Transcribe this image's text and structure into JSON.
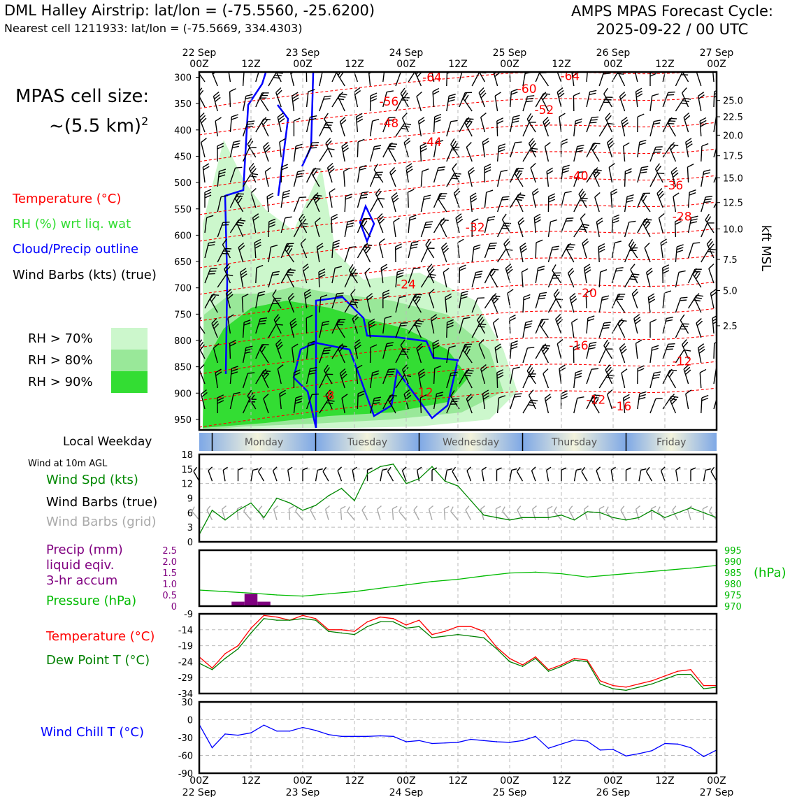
{
  "header": {
    "title_left": "DML Halley Airstrip: lat/lon = (-75.5560, -25.6200)",
    "subtitle_left": "Nearest cell 1211933: lat/lon = (-75.5669, 334.4303)",
    "title_right_line1": "AMPS MPAS Forecast Cycle:",
    "title_right_line2": "2025-09-22 / 00 UTC"
  },
  "cell_size": {
    "line1": "MPAS cell size:",
    "line2_prefix": "~(5.5 km)",
    "line2_sup": "2"
  },
  "legend": {
    "temperature": "Temperature (°C)",
    "rh": "RH (%) wrt liq. wat",
    "cloud": "Cloud/Precip outline",
    "wind": "Wind Barbs (kts) (true)",
    "rh70": "RH > 70%",
    "rh80": "RH > 80%",
    "rh90": "RH > 90%"
  },
  "colors": {
    "temp": "#ff0000",
    "rh_label": "#33dd33",
    "cloud": "#0000ff",
    "rh70": "#ccf7cc",
    "rh80": "#99e899",
    "rh90": "#33dd33",
    "wind_spd": "#008800",
    "barb_grid": "#aaaaaa",
    "precip": "#800080",
    "pressure": "#00bb00",
    "dewpoint": "#008000",
    "windchill": "#0000ff"
  },
  "time_axis": {
    "date_labels": [
      "22 Sep",
      "23 Sep",
      "24 Sep",
      "25 Sep",
      "26 Sep",
      "27 Sep"
    ],
    "hour_labels": [
      "00Z",
      "12Z",
      "00Z",
      "12Z",
      "00Z",
      "12Z",
      "00Z",
      "12Z",
      "00Z",
      "12Z",
      "00Z"
    ],
    "range_hours": [
      0,
      120
    ]
  },
  "weekday": {
    "label": "Local Weekday",
    "days": [
      "Monday",
      "Tuesday",
      "Wednesday",
      "Thursday",
      "Friday"
    ]
  },
  "panels": {
    "wind_title": "Wind at 10m AGL",
    "wind_spd": "Wind Spd (kts)",
    "wind_barbs_true": "Wind Barbs (true)",
    "wind_barbs_grid": "Wind Barbs (grid)",
    "precip_1": "Precip (mm)",
    "precip_2": "liquid eqiv.",
    "precip_3": "3-hr accum",
    "pressure": "Pressure (hPa)",
    "pressure_unit": "(hPa)",
    "temp": "Temperature (°C)",
    "dewpoint": "Dew Point T (°C)",
    "windchill": "Wind Chill T (°C)"
  },
  "chart_data": [
    {
      "type": "heatmap",
      "name": "profile",
      "ylabel_right": "kft MSL",
      "y_ticks_hpa": [
        300,
        350,
        400,
        450,
        500,
        550,
        600,
        650,
        700,
        750,
        800,
        850,
        900,
        950
      ],
      "ylim_hpa": [
        290,
        970
      ],
      "y_right_ticks_kft": [
        "25.0",
        "22.5",
        "20.0",
        "17.5",
        "15.0",
        "12.5",
        "10.0",
        "7.5",
        "5.0",
        "2.5"
      ],
      "y_right_tick_hpa": [
        344,
        375,
        410,
        449,
        491,
        538,
        588,
        646,
        705,
        772
      ],
      "temp_contour_labels": [
        {
          "t": 27,
          "p": 300,
          "v": "-64"
        },
        {
          "t": 43,
          "p": 297,
          "v": "-64"
        },
        {
          "t": 22,
          "p": 346,
          "v": "-56"
        },
        {
          "t": 38,
          "p": 322,
          "v": "-60"
        },
        {
          "t": 40,
          "p": 362,
          "v": "-52"
        },
        {
          "t": 22,
          "p": 387,
          "v": "-48"
        },
        {
          "t": 27,
          "p": 423,
          "v": "-44"
        },
        {
          "t": 44,
          "p": 487,
          "v": "-40"
        },
        {
          "t": 55,
          "p": 505,
          "v": "-36"
        },
        {
          "t": 56,
          "p": 564,
          "v": "-28"
        },
        {
          "t": 32,
          "p": 585,
          "v": "-32"
        },
        {
          "t": 24,
          "p": 693,
          "v": "-24"
        },
        {
          "t": 45,
          "p": 710,
          "v": "-20"
        },
        {
          "t": 44,
          "p": 809,
          "v": "-16"
        },
        {
          "t": 56,
          "p": 839,
          "v": "-12"
        },
        {
          "t": 26,
          "p": 898,
          "v": "-12"
        },
        {
          "t": 15,
          "p": 904,
          "v": "-8"
        },
        {
          "t": 46,
          "p": 912,
          "v": "-12"
        },
        {
          "t": 49,
          "p": 925,
          "v": "-16"
        }
      ]
    },
    {
      "type": "line",
      "name": "wind10m",
      "ylim": [
        0,
        18
      ],
      "y_ticks": [
        0,
        3,
        6,
        9,
        12,
        15,
        18
      ],
      "x": [
        0,
        3,
        6,
        9,
        12,
        15,
        18,
        21,
        24,
        27,
        30,
        33,
        36,
        39,
        42,
        45,
        48,
        51,
        54,
        57,
        60,
        63,
        66,
        69,
        72,
        75,
        78,
        81,
        84,
        87,
        90,
        93,
        96,
        99,
        102,
        105,
        108,
        111,
        114,
        117,
        120
      ],
      "series": [
        {
          "name": "Wind Spd (kts)",
          "values": [
            1.5,
            6.5,
            4.5,
            6.5,
            8,
            5,
            9,
            8,
            6.5,
            7.5,
            9.5,
            11,
            8.5,
            14,
            15.5,
            16,
            12,
            13,
            15.5,
            12.5,
            11.5,
            8.5,
            5.5,
            5,
            4.5,
            5,
            5,
            5,
            5.5,
            4.5,
            6.2,
            6,
            5,
            4.5,
            5,
            6.5,
            5,
            6,
            7,
            6,
            5
          ]
        }
      ]
    },
    {
      "type": "line",
      "name": "precip_pressure",
      "precip_ylim": [
        0,
        2.5
      ],
      "precip_ticks": [
        "0",
        "0.5",
        "1.0",
        "1.5",
        "2.0",
        "2.5"
      ],
      "pressure_ylim": [
        970,
        995
      ],
      "pressure_ticks": [
        970,
        975,
        980,
        985,
        990,
        995
      ],
      "precip_bars": [
        {
          "x": 9,
          "v": 0.2
        },
        {
          "x": 12,
          "v": 0.55
        },
        {
          "x": 15,
          "v": 0.2
        }
      ],
      "x": [
        0,
        6,
        12,
        18,
        24,
        30,
        36,
        42,
        48,
        54,
        60,
        66,
        72,
        78,
        84,
        90,
        96,
        102,
        108,
        114,
        120
      ],
      "series": [
        {
          "name": "Pressure (hPa)",
          "values": [
            977.2,
            976.5,
            975.8,
            975,
            974.5,
            975.5,
            976.5,
            978,
            979.5,
            981,
            982,
            983.5,
            984.8,
            985.2,
            984.5,
            983,
            984,
            985,
            986,
            987,
            988.2
          ]
        }
      ]
    },
    {
      "type": "line",
      "name": "temp_dew",
      "ylim": [
        -34,
        -9
      ],
      "y_ticks": [
        -9,
        -14,
        -19,
        -24,
        -29,
        -34
      ],
      "x": [
        0,
        3,
        6,
        9,
        12,
        15,
        18,
        21,
        24,
        27,
        30,
        33,
        36,
        39,
        42,
        45,
        48,
        51,
        54,
        57,
        60,
        63,
        66,
        69,
        72,
        75,
        78,
        81,
        84,
        87,
        90,
        93,
        96,
        99,
        102,
        105,
        108,
        111,
        114,
        117,
        120
      ],
      "series": [
        {
          "name": "Temperature (°C)",
          "values": [
            -22.5,
            -26,
            -21.5,
            -19,
            -13.5,
            -9.5,
            -10,
            -11,
            -9.5,
            -10.5,
            -14,
            -14,
            -14.5,
            -11.5,
            -10,
            -10.5,
            -12.5,
            -11,
            -15.5,
            -14.5,
            -13,
            -13,
            -14.5,
            -19.5,
            -23,
            -25,
            -22.5,
            -26.5,
            -25,
            -23,
            -23.5,
            -30,
            -31.5,
            -32,
            -31,
            -30,
            -28.5,
            -27,
            -26.5,
            -31.5,
            -31.5
          ]
        },
        {
          "name": "Dew Point T (°C)",
          "values": [
            -24.5,
            -26.5,
            -23,
            -20,
            -15,
            -10.5,
            -11,
            -11,
            -10.5,
            -11,
            -14.5,
            -15,
            -15.5,
            -13,
            -11.5,
            -11.5,
            -13.5,
            -13,
            -16.5,
            -16,
            -15.5,
            -16,
            -16.5,
            -20,
            -24,
            -25.5,
            -23,
            -27,
            -25.5,
            -23.5,
            -24,
            -31,
            -32.5,
            -33,
            -32,
            -31,
            -29.5,
            -28,
            -28,
            -32.5,
            -32
          ]
        }
      ]
    },
    {
      "type": "line",
      "name": "windchill",
      "ylim": [
        -90,
        30
      ],
      "y_ticks": [
        30,
        0,
        -30,
        -60,
        -90
      ],
      "x": [
        0,
        3,
        6,
        9,
        12,
        15,
        18,
        21,
        24,
        27,
        30,
        33,
        36,
        39,
        42,
        45,
        48,
        51,
        54,
        57,
        60,
        63,
        66,
        69,
        72,
        75,
        78,
        81,
        84,
        87,
        90,
        93,
        96,
        99,
        102,
        105,
        108,
        111,
        114,
        117,
        120
      ],
      "series": [
        {
          "name": "Wind Chill T (°C)",
          "values": [
            -8,
            -47,
            -24,
            -26,
            -22,
            -9,
            -19,
            -19,
            -13,
            -18,
            -25,
            -28,
            -28,
            -28,
            -27,
            -28,
            -37,
            -35,
            -40,
            -39,
            -38,
            -33,
            -35,
            -37,
            -38,
            -35,
            -28,
            -48,
            -41,
            -34,
            -36,
            -51,
            -50,
            -61,
            -57,
            -52,
            -40,
            -41,
            -47,
            -62,
            -51
          ]
        }
      ]
    }
  ]
}
